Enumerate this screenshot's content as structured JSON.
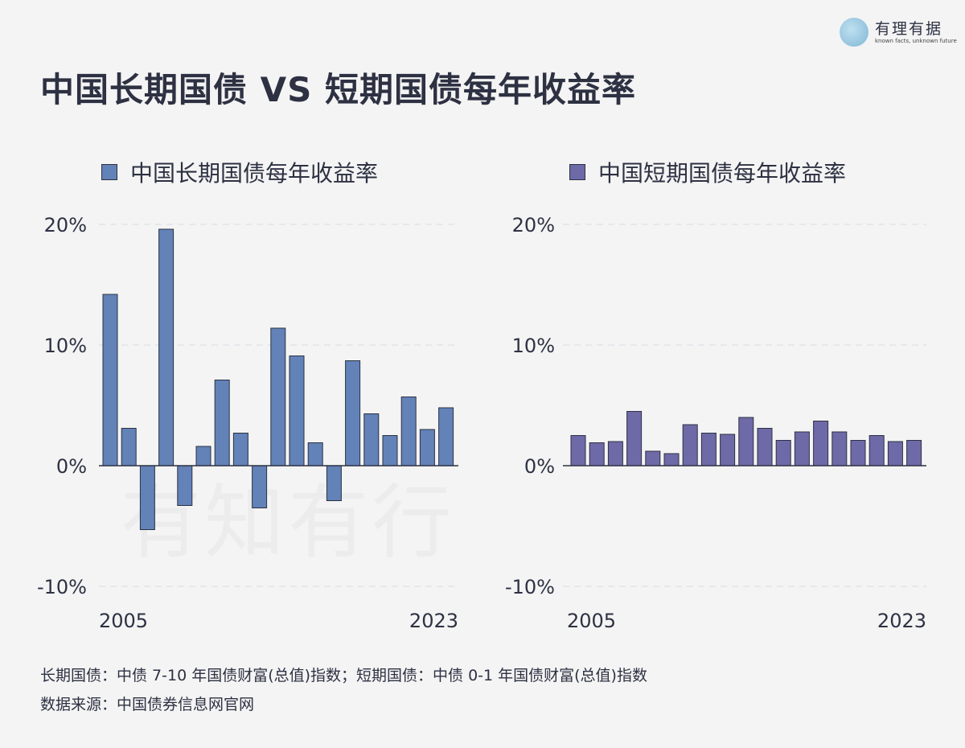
{
  "title": "中国长期国债 VS 短期国债每年收益率",
  "logo": {
    "main": "有理有据",
    "sub": "known facts, unknown future"
  },
  "watermark": "有知有行",
  "notes": [
    "长期国债：中债 7-10 年国债财富(总值)指数；短期国债：中债 0-1 年国债财富(总值)指数",
    "数据来源：中国债券信息网官网"
  ],
  "chart_data": [
    {
      "type": "bar",
      "title": "中国长期国债每年收益率",
      "legend": "中国长期国债每年收益率",
      "color": "#6282b8",
      "categories": [
        2005,
        2006,
        2007,
        2008,
        2009,
        2010,
        2011,
        2012,
        2013,
        2014,
        2015,
        2016,
        2017,
        2018,
        2019,
        2020,
        2021,
        2022,
        2023
      ],
      "values": [
        14.2,
        3.1,
        -5.3,
        19.6,
        -3.3,
        1.6,
        7.1,
        2.7,
        -3.5,
        11.4,
        9.1,
        1.9,
        -2.9,
        8.7,
        4.3,
        2.5,
        5.7,
        3.0,
        4.8
      ],
      "ylim": [
        -10,
        20
      ],
      "yticks": [
        "-10%",
        "0%",
        "10%",
        "20%"
      ],
      "xtick_labels": [
        "2005",
        "2023"
      ],
      "grid": true,
      "unit": "%"
    },
    {
      "type": "bar",
      "title": "中国短期国债每年收益率",
      "legend": "中国短期国债每年收益率",
      "color": "#6e6aa8",
      "categories": [
        2005,
        2006,
        2007,
        2008,
        2009,
        2010,
        2011,
        2012,
        2013,
        2014,
        2015,
        2016,
        2017,
        2018,
        2019,
        2020,
        2021,
        2022,
        2023
      ],
      "values": [
        2.5,
        1.9,
        2.0,
        4.5,
        1.2,
        1.0,
        3.4,
        2.7,
        2.6,
        4.0,
        3.1,
        2.1,
        2.8,
        3.7,
        2.8,
        2.1,
        2.5,
        2.0,
        2.1
      ],
      "ylim": [
        -10,
        20
      ],
      "yticks": [
        "-10%",
        "0%",
        "10%",
        "20%"
      ],
      "xtick_labels": [
        "2005",
        "2023"
      ],
      "grid": true,
      "unit": "%"
    }
  ]
}
